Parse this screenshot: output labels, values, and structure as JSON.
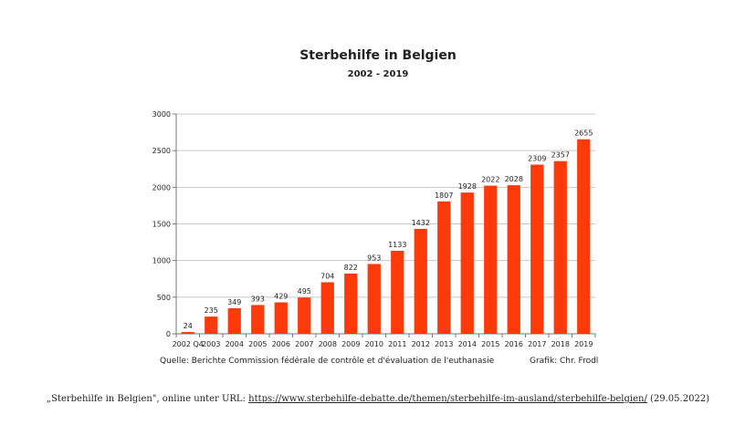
{
  "chart_data": {
    "type": "bar",
    "title": "Sterbehilfe in Belgien",
    "subtitle": "2002 - 2019",
    "categories": [
      "2002 Q4",
      "2003",
      "2004",
      "2005",
      "2006",
      "2007",
      "2008",
      "2009",
      "2010",
      "2011",
      "2012",
      "2013",
      "2014",
      "2015",
      "2016",
      "2017",
      "2018",
      "2019"
    ],
    "values": [
      24,
      235,
      349,
      393,
      429,
      495,
      704,
      822,
      953,
      1133,
      1432,
      1807,
      1928,
      2022,
      2028,
      2309,
      2357,
      2655
    ],
    "ylim": [
      0,
      3000
    ],
    "yticks": [
      0,
      500,
      1000,
      1500,
      2000,
      2500,
      3000
    ],
    "grid": true,
    "legend": "none",
    "bar_color": "#ff3a0a"
  },
  "footer": {
    "source": "Quelle: Berichte Commission fédérale de contrôle et d'évaluation de l'euthanasie",
    "credit": "Grafik: Chr. Frodl"
  },
  "citation": {
    "prefix": "„Sterbehilfe in Belgien\", online unter URL: ",
    "url": "https://www.sterbehilfe-debatte.de/themen/sterbehilfe-im-ausland/sterbehilfe-belgien/",
    "suffix": " (29.05.2022)"
  }
}
